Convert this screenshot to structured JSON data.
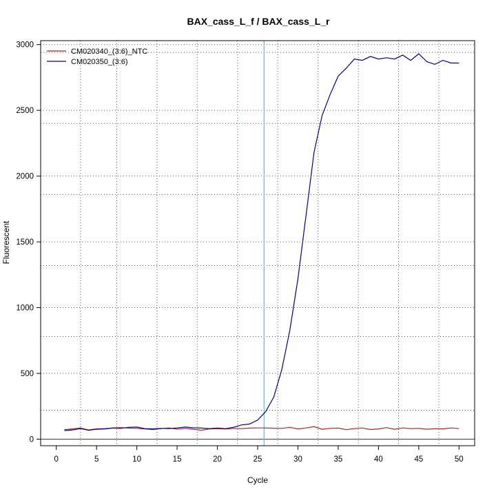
{
  "chart_data": {
    "type": "line",
    "title": "BAX_cass_L_f / BAX_cass_L_r",
    "xlabel": "Cycle",
    "ylabel": "Fluorescent",
    "xlim": [
      -1.94,
      51.94
    ],
    "ylim": [
      -50,
      3030
    ],
    "x_ticks": [
      0,
      5,
      10,
      15,
      20,
      25,
      30,
      35,
      40,
      45,
      50
    ],
    "y_ticks": [
      0,
      500,
      1000,
      1500,
      2000,
      2500,
      3000
    ],
    "grid": true,
    "grid_style": "dotted",
    "grid_x": [
      3,
      7.5,
      12.5,
      17.5,
      22.5,
      27.5,
      32.5,
      37.5,
      42.5,
      47.5
    ],
    "grid_y": [
      0,
      500,
      1000,
      1500,
      2000,
      2500,
      3000,
      220,
      780,
      1320,
      1860,
      2400,
      2940
    ],
    "legend_position": "top-left",
    "threshold_line": {
      "y": 0,
      "color": "#cc0000"
    },
    "cycle_marker": {
      "x": 25.8,
      "color": "#00e5ee"
    },
    "series": [
      {
        "name": "CM020340_(3:6)_NTC",
        "color": "#b22222",
        "x": [
          1,
          2,
          3,
          4,
          5,
          6,
          7,
          8,
          9,
          10,
          11,
          12,
          13,
          14,
          15,
          16,
          17,
          18,
          19,
          20,
          21,
          22,
          23,
          24,
          25,
          26,
          27,
          28,
          29,
          30,
          31,
          32,
          33,
          34,
          35,
          36,
          37,
          38,
          39,
          40,
          41,
          42,
          43,
          44,
          45,
          46,
          47,
          48,
          49,
          50
        ],
        "values": [
          72,
          78,
          85,
          70,
          78,
          80,
          85,
          88,
          84,
          82,
          78,
          72,
          80,
          85,
          76,
          82,
          75,
          68,
          78,
          80,
          77,
          82,
          80,
          84,
          85,
          85,
          83,
          82,
          90,
          78,
          85,
          95,
          75,
          82,
          84,
          72,
          80,
          85,
          73,
          78,
          88,
          75,
          85,
          80,
          82,
          75,
          80,
          78,
          85,
          80
        ]
      },
      {
        "name": "CM020350_(3:6)",
        "color": "#00008b",
        "x": [
          1,
          2,
          3,
          4,
          5,
          6,
          7,
          8,
          9,
          10,
          11,
          12,
          13,
          14,
          15,
          16,
          17,
          18,
          19,
          20,
          21,
          22,
          23,
          24,
          25,
          26,
          27,
          28,
          29,
          30,
          31,
          32,
          33,
          34,
          35,
          36,
          37,
          38,
          39,
          40,
          41,
          42,
          43,
          44,
          45,
          46,
          47,
          48,
          49,
          50
        ],
        "values": [
          65,
          70,
          80,
          68,
          75,
          78,
          84,
          82,
          90,
          92,
          80,
          78,
          82,
          80,
          85,
          92,
          86,
          84,
          80,
          84,
          80,
          90,
          108,
          115,
          145,
          210,
          320,
          530,
          830,
          1220,
          1700,
          2180,
          2460,
          2620,
          2760,
          2820,
          2890,
          2880,
          2910,
          2890,
          2900,
          2890,
          2920,
          2880,
          2930,
          2870,
          2850,
          2880,
          2860,
          2860
        ]
      }
    ]
  }
}
